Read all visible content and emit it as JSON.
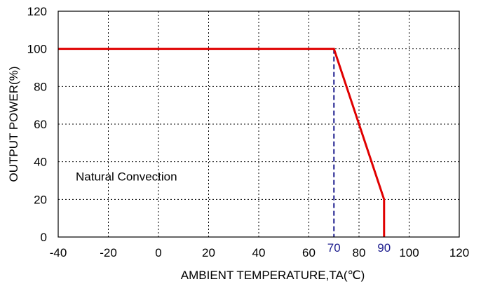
{
  "chart_data": {
    "type": "line",
    "title": "",
    "xlabel": "AMBIENT TEMPERATURE,TA(℃)",
    "ylabel": "OUTPUT POWER(%)",
    "xlim": [
      -40,
      120
    ],
    "ylim": [
      0,
      120
    ],
    "x_ticks": [
      -40,
      -20,
      0,
      20,
      40,
      60,
      80,
      100,
      120
    ],
    "y_ticks": [
      0,
      20,
      40,
      60,
      80,
      100,
      120
    ],
    "grid": true,
    "grid_style": "dotted",
    "series": [
      {
        "color": "#e00000",
        "points": [
          {
            "x": -40,
            "y": 100
          },
          {
            "x": 70,
            "y": 100
          },
          {
            "x": 90,
            "y": 20
          },
          {
            "x": 90,
            "y": 0
          }
        ]
      }
    ],
    "reference_lines": [
      {
        "x": 70,
        "label": "70",
        "color": "#1f1f8f",
        "style": "dashed"
      }
    ],
    "point_labels": [
      {
        "x": 90,
        "label": "90",
        "color": "#1f1f8f"
      }
    ],
    "annotations": [
      {
        "text": "Natural Convection",
        "x": -33,
        "y": 30
      }
    ]
  }
}
